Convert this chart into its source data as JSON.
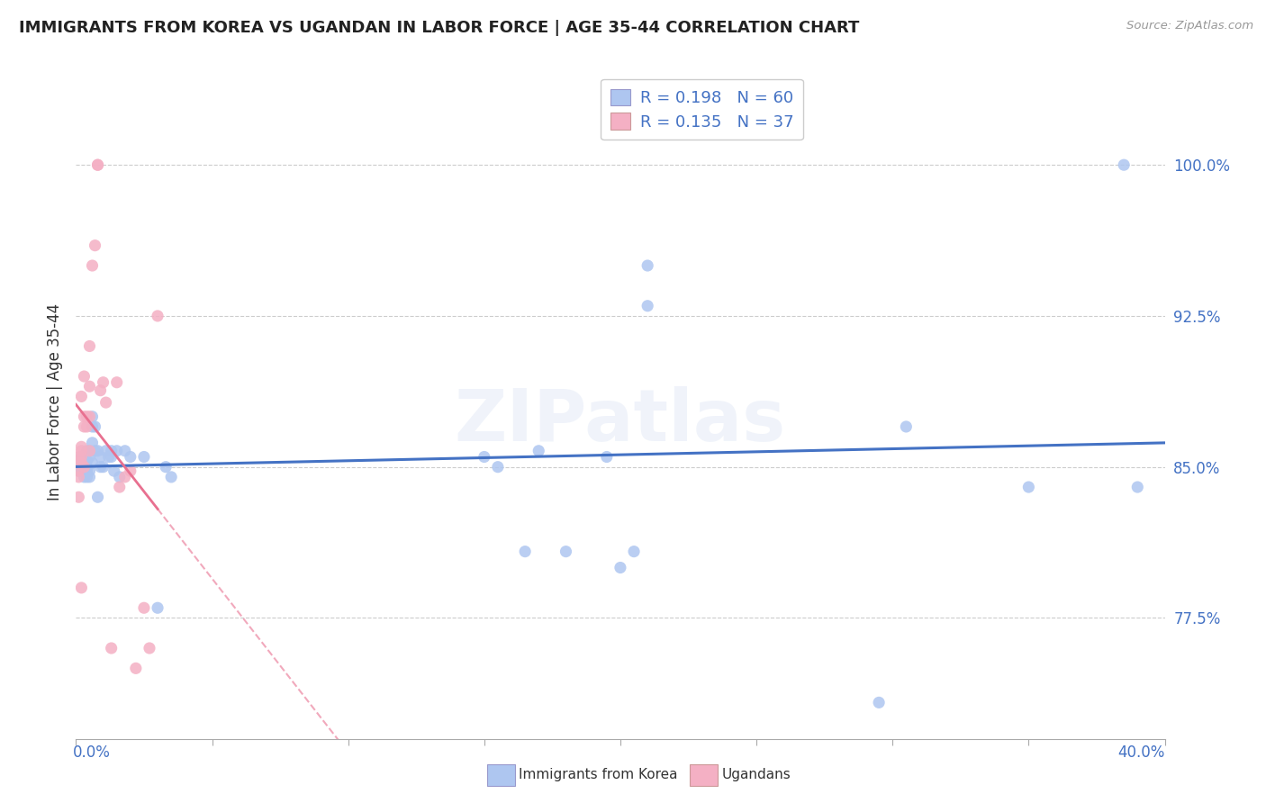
{
  "title": "IMMIGRANTS FROM KOREA VS UGANDAN IN LABOR FORCE | AGE 35-44 CORRELATION CHART",
  "source": "Source: ZipAtlas.com",
  "ylabel": "In Labor Force | Age 35-44",
  "ylabel_ticks": [
    "77.5%",
    "85.0%",
    "92.5%",
    "100.0%"
  ],
  "ylabel_values": [
    0.775,
    0.85,
    0.925,
    1.0
  ],
  "xlim": [
    0.0,
    0.4
  ],
  "ylim": [
    0.715,
    1.05
  ],
  "korea_color": "#aec6f0",
  "uganda_color": "#f4b0c4",
  "korea_line_color": "#4472c4",
  "uganda_line_color": "#e87090",
  "watermark": "ZIPatlas",
  "legend_entries": [
    "Immigrants from Korea",
    "Ugandans"
  ],
  "korea_x": [
    0.001,
    0.001,
    0.002,
    0.002,
    0.002,
    0.002,
    0.003,
    0.003,
    0.003,
    0.003,
    0.003,
    0.003,
    0.004,
    0.004,
    0.004,
    0.004,
    0.004,
    0.005,
    0.005,
    0.005,
    0.005,
    0.006,
    0.006,
    0.006,
    0.006,
    0.007,
    0.007,
    0.008,
    0.008,
    0.009,
    0.009,
    0.01,
    0.011,
    0.012,
    0.013,
    0.013,
    0.014,
    0.015,
    0.016,
    0.018,
    0.02,
    0.025,
    0.03,
    0.033,
    0.035,
    0.15,
    0.155,
    0.165,
    0.17,
    0.18,
    0.195,
    0.2,
    0.205,
    0.21,
    0.21,
    0.295,
    0.305,
    0.35,
    0.385,
    0.39
  ],
  "korea_y": [
    0.85,
    0.848,
    0.852,
    0.848,
    0.852,
    0.855,
    0.845,
    0.848,
    0.85,
    0.852,
    0.855,
    0.85,
    0.845,
    0.848,
    0.85,
    0.853,
    0.858,
    0.845,
    0.855,
    0.858,
    0.848,
    0.862,
    0.852,
    0.875,
    0.87,
    0.858,
    0.87,
    0.858,
    0.835,
    0.855,
    0.85,
    0.85,
    0.858,
    0.855,
    0.858,
    0.855,
    0.848,
    0.858,
    0.845,
    0.858,
    0.855,
    0.855,
    0.78,
    0.85,
    0.845,
    0.855,
    0.85,
    0.808,
    0.858,
    0.808,
    0.855,
    0.8,
    0.808,
    0.95,
    0.93,
    0.733,
    0.87,
    0.84,
    1.0,
    0.84
  ],
  "uganda_x": [
    0.001,
    0.001,
    0.001,
    0.001,
    0.001,
    0.002,
    0.002,
    0.002,
    0.002,
    0.002,
    0.002,
    0.003,
    0.003,
    0.003,
    0.003,
    0.004,
    0.004,
    0.005,
    0.005,
    0.005,
    0.005,
    0.006,
    0.007,
    0.008,
    0.008,
    0.009,
    0.01,
    0.011,
    0.013,
    0.015,
    0.016,
    0.018,
    0.02,
    0.022,
    0.025,
    0.027,
    0.03
  ],
  "uganda_y": [
    0.855,
    0.852,
    0.848,
    0.845,
    0.835,
    0.855,
    0.858,
    0.885,
    0.86,
    0.852,
    0.79,
    0.87,
    0.875,
    0.895,
    0.85,
    0.87,
    0.875,
    0.89,
    0.858,
    0.875,
    0.91,
    0.95,
    0.96,
    1.0,
    1.0,
    0.888,
    0.892,
    0.882,
    0.76,
    0.892,
    0.84,
    0.845,
    0.848,
    0.75,
    0.78,
    0.76,
    0.925
  ]
}
